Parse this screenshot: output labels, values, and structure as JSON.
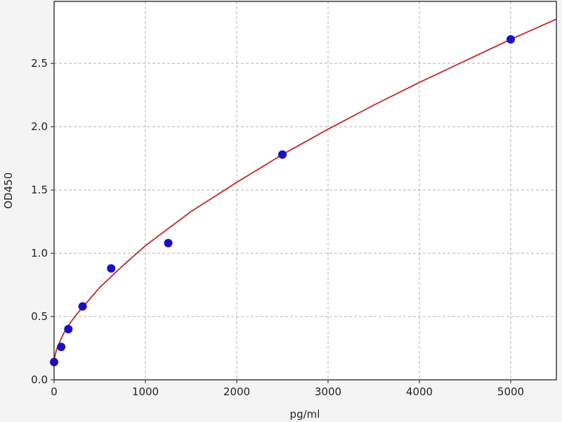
{
  "chart_data": {
    "type": "scatter",
    "title": "",
    "xlabel": "pg/ml",
    "ylabel": "OD450",
    "xlim": [
      0,
      5500
    ],
    "ylim": [
      0,
      2.99
    ],
    "xticks": [
      0,
      1000,
      2000,
      3000,
      4000,
      5000
    ],
    "xtick_labels": [
      "0",
      "1000",
      "2000",
      "3000",
      "4000",
      "5000"
    ],
    "yticks": [
      0,
      0.5,
      1.0,
      1.5,
      2.0,
      2.5
    ],
    "ytick_labels": [
      "0.0",
      "0.5",
      "1.0",
      "1.5",
      "2.0",
      "2.5"
    ],
    "grid": true,
    "series": [
      {
        "kind": "points",
        "color": "#1a0fc8",
        "x": [
          0,
          78.125,
          156.25,
          312.5,
          625,
          1250,
          2500,
          5000
        ],
        "y": [
          0.14,
          0.26,
          0.4,
          0.58,
          0.88,
          1.08,
          1.78,
          2.69
        ]
      },
      {
        "kind": "fit-line",
        "color": "#c0282a",
        "x": [
          0,
          25,
          50,
          100,
          156,
          250,
          500,
          750,
          1000,
          1500,
          2000,
          2500,
          3000,
          3500,
          4000,
          4500,
          5000,
          5500
        ],
        "y": [
          0.16,
          0.235,
          0.28,
          0.36,
          0.43,
          0.52,
          0.73,
          0.9,
          1.06,
          1.33,
          1.56,
          1.78,
          1.98,
          2.17,
          2.35,
          2.52,
          2.69,
          2.85
        ]
      }
    ]
  }
}
